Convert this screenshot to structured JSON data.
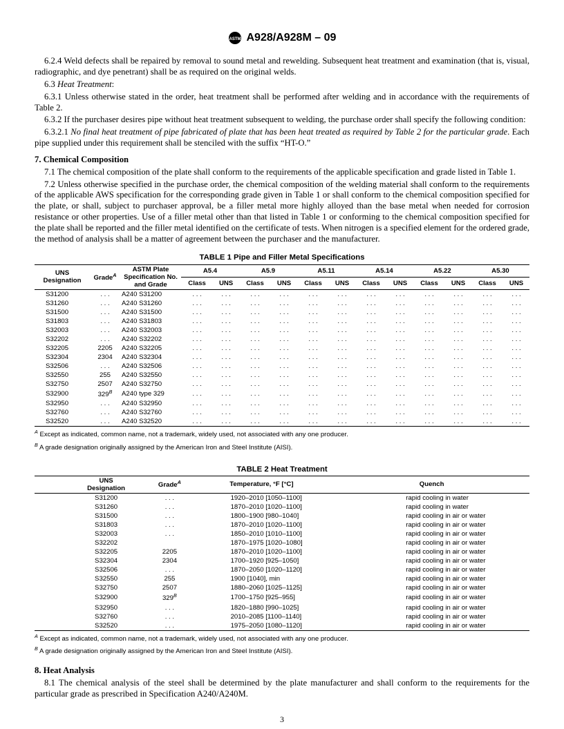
{
  "header": {
    "designation": "A928/A928M – 09"
  },
  "paras": {
    "p624": "6.2.4 Weld defects shall be repaired by removal to sound metal and rewelding. Subsequent heat treatment and examination (that is, visual, radiographic, and dye penetrant) shall be as required on the original welds.",
    "p63label": "6.3",
    "p63title": "Heat Treatment",
    "p631": "6.3.1 Unless otherwise stated in the order, heat treatment shall be performed after welding and in accordance with the requirements of Table 2.",
    "p632": "6.3.2 If the purchaser desires pipe without heat treatment subsequent to welding, the purchase order shall specify the following condition:",
    "p6321a": "6.3.2.1",
    "p6321b": "No final heat treatment of pipe fabricated of plate that has been heat treated as required by Table 2 for the particular grade",
    "p6321c": ". Each pipe supplied under this requirement shall be stenciled with the suffix “HT-O.”",
    "s7": "7. Chemical Composition",
    "p71": "7.1 The chemical composition of the plate shall conform to the requirements of the applicable specification and grade listed in Table 1.",
    "p72": "7.2 Unless otherwise specified in the purchase order, the chemical composition of the welding material shall conform to the requirements of the applicable AWS specification for the corresponding grade given in Table 1 or shall conform to the chemical composition specified for the plate, or shall, subject to purchaser approval, be a filler metal more highly alloyed than the base metal when needed for corrosion resistance or other properties. Use of a filler metal other than that listed in Table 1 or conforming to the chemical composition specified for the plate shall be reported and the filler metal identified on the certificate of tests. When nitrogen is a specified element for the ordered grade, the method of analysis shall be a matter of agreement between the purchaser and the manufacturer.",
    "s8": "8. Heat Analysis",
    "p81": "8.1 The chemical analysis of the steel shall be determined by the plate manufacturer and shall conform to the requirements for the particular grade as prescribed in Specification A240/A240M."
  },
  "table1": {
    "title": "TABLE 1   Pipe and Filler Metal Specifications",
    "head": {
      "uns1": "UNS",
      "uns2": "Designation",
      "grade": "Grade",
      "plate1": "ASTM Plate",
      "plate2": "Specification No.",
      "plate3": "and Grade",
      "specs": [
        "A5.4",
        "A5.9",
        "A5.11",
        "A5.14",
        "A5.22",
        "A5.30"
      ],
      "sub": [
        "Class",
        "UNS"
      ]
    },
    "rows": [
      {
        "uns": "S31200",
        "grade": ". . .",
        "plate": "A240 S31200"
      },
      {
        "uns": "S31260",
        "grade": ". . .",
        "plate": "A240 S31260"
      },
      {
        "uns": "S31500",
        "grade": ". . .",
        "plate": "A240 S31500"
      },
      {
        "uns": "S31803",
        "grade": ". . .",
        "plate": "A240 S31803"
      },
      {
        "uns": "S32003",
        "grade": ". . .",
        "plate": "A240 S32003"
      },
      {
        "uns": "S32202",
        "grade": ". . .",
        "plate": "A240 S32202"
      },
      {
        "uns": "S32205",
        "grade": "2205",
        "plate": "A240 S32205"
      },
      {
        "uns": "S32304",
        "grade": "2304",
        "plate": "A240 S32304"
      },
      {
        "uns": "S32506",
        "grade": ". . .",
        "plate": "A240 S32506"
      },
      {
        "uns": "S32550",
        "grade": "255",
        "plate": "A240 S32550"
      },
      {
        "uns": "S32750",
        "grade": "2507",
        "plate": "A240 S32750"
      },
      {
        "uns": "S32900",
        "grade": "329",
        "gradeB": true,
        "plate": "A240 type 329"
      },
      {
        "uns": "S32950",
        "grade": ". . .",
        "plate": "A240 S32950"
      },
      {
        "uns": "S32760",
        "grade": ". . .",
        "plate": "A240 S32760"
      },
      {
        "uns": "S32520",
        "grade": ". . .",
        "plate": "A240 S32520"
      }
    ],
    "dots": ". . .",
    "fnA": "Except as indicated, common name, not a trademark, widely used, not associated with any one producer.",
    "fnB": "A grade designation originally assigned by the American Iron and Steel Institute (AISI)."
  },
  "table2": {
    "title": "TABLE 2   Heat Treatment",
    "head": {
      "uns1": "UNS",
      "uns2": "Designation",
      "grade": "Grade",
      "temp": "Temperature, °F [°C]",
      "quench": "Quench"
    },
    "rows": [
      {
        "uns": "S31200",
        "grade": ". . .",
        "temp": "1920–2010 [1050–1100]",
        "q": "rapid cooling in water"
      },
      {
        "uns": "S31260",
        "grade": ". . .",
        "temp": "1870–2010 [1020–1100]",
        "q": "rapid cooling in water"
      },
      {
        "uns": "S31500",
        "grade": ". . .",
        "temp": "1800–1900 [980–1040]",
        "q": "rapid cooling in air or water"
      },
      {
        "uns": "S31803",
        "grade": ". . .",
        "temp": "1870–2010 [1020–1100]",
        "q": "rapid cooling in air or water"
      },
      {
        "uns": "S32003",
        "grade": ". . .",
        "temp": "1850–2010 [1010–1100]",
        "q": "rapid cooling in air or water"
      },
      {
        "uns": "S32202",
        "grade": "",
        "temp": "1870–1975 [1020–1080]",
        "q": "rapid cooling in air or water"
      },
      {
        "uns": "S32205",
        "grade": "2205",
        "temp": "1870–2010 [1020–1100]",
        "q": "rapid cooling in air or water"
      },
      {
        "uns": "S32304",
        "grade": "2304",
        "temp": "1700–1920 [925–1050]",
        "q": "rapid cooling in air or water"
      },
      {
        "uns": "S32506",
        "grade": ". . .",
        "temp": "1870–2050 [1020–1120]",
        "q": "rapid cooling in air or water"
      },
      {
        "uns": "S32550",
        "grade": "255",
        "temp": "1900 [1040], min",
        "q": "rapid cooling in air or water"
      },
      {
        "uns": "S32750",
        "grade": "2507",
        "temp": "1880–2060 [1025–1125]",
        "q": "rapid cooling in air or water"
      },
      {
        "uns": "S32900",
        "grade": "329",
        "gradeB": true,
        "temp": "1700–1750 [925–955]",
        "q": "rapid cooling in air or water"
      },
      {
        "uns": "S32950",
        "grade": ". . .",
        "temp": "1820–1880 [990–1025]",
        "q": "rapid cooling in air or water"
      },
      {
        "uns": "S32760",
        "grade": ". . .",
        "temp": "2010–2085 [1100–1140]",
        "q": "rapid cooling in air or water"
      },
      {
        "uns": "S32520",
        "grade": ". . .",
        "temp": "1975–2050 [1080–1120]",
        "q": "rapid cooling in air or water"
      }
    ],
    "fnA": "Except as indicated, common name, not a trademark, widely used, not associated with any one producer.",
    "fnB": "A grade designation originally assigned by the American Iron and Steel Institute (AISI)."
  },
  "page": "3"
}
